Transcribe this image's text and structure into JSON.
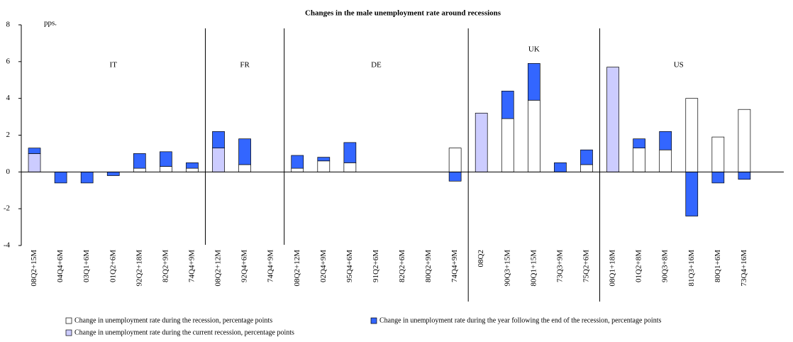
{
  "chart_data": {
    "type": "stacked-bar",
    "title": "Changes in the male unemployment rate around recessions",
    "y_unit": "pps.",
    "groups": [
      "IT",
      "FR",
      "DE",
      "UK",
      "US"
    ],
    "categories": [
      "08Q2+15M",
      "04Q4+6M",
      "03Q1+6M",
      "01Q2+6M",
      "92Q2+18M",
      "82Q2+9M",
      "74Q4+9M",
      "08Q2+12M",
      "92Q4+6M",
      "74Q4+9M",
      "08Q2+12M",
      "02Q4+9M",
      "95Q4+6M",
      "91Q2+6M",
      "82Q2+6M",
      "80Q2+9M",
      "74Q4+9M",
      "08Q2",
      "90Q3+15M",
      "80Q1+15M",
      "73Q3+9M",
      "75Q2+6M",
      "08Q1+18M",
      "01Q2+8M",
      "90Q3+8M",
      "81Q3+16M",
      "80Q1+6M",
      "73Q4+16M",
      null
    ],
    "series": [
      {
        "name": "Change in unemployment rate during the recession, percentage points",
        "color": "#ffffff",
        "values": [
          null,
          null,
          null,
          null,
          0.2,
          0.3,
          0.2,
          null,
          0.4,
          null,
          0.2,
          0.6,
          0.5,
          null,
          null,
          null,
          1.3,
          null,
          2.9,
          3.9,
          null,
          0.4,
          null,
          1.3,
          1.2,
          4.0,
          1.9,
          3.4,
          null
        ]
      },
      {
        "name": "Change in unemployment rate during the current recession, percentage points",
        "color": "#ccccff",
        "values": [
          1.0,
          null,
          null,
          null,
          null,
          null,
          null,
          1.3,
          null,
          null,
          null,
          null,
          null,
          null,
          null,
          null,
          null,
          3.2,
          null,
          null,
          null,
          null,
          5.7,
          null,
          null,
          null,
          null,
          null,
          null
        ]
      },
      {
        "name": "Change in unemployment rate during the year following the end of the recession, percentage points",
        "color": "#3366ff",
        "values": [
          0.3,
          -0.6,
          -0.6,
          -0.2,
          0.8,
          0.8,
          0.3,
          0.9,
          1.4,
          null,
          0.7,
          0.2,
          1.1,
          null,
          null,
          null,
          -0.5,
          null,
          1.5,
          2.0,
          0.5,
          0.8,
          null,
          0.5,
          1.0,
          -2.4,
          -0.6,
          -0.4,
          null
        ]
      }
    ],
    "ylim": [
      -4,
      8
    ],
    "yticks": [
      -4,
      -2,
      0,
      2,
      4,
      6,
      8
    ]
  }
}
